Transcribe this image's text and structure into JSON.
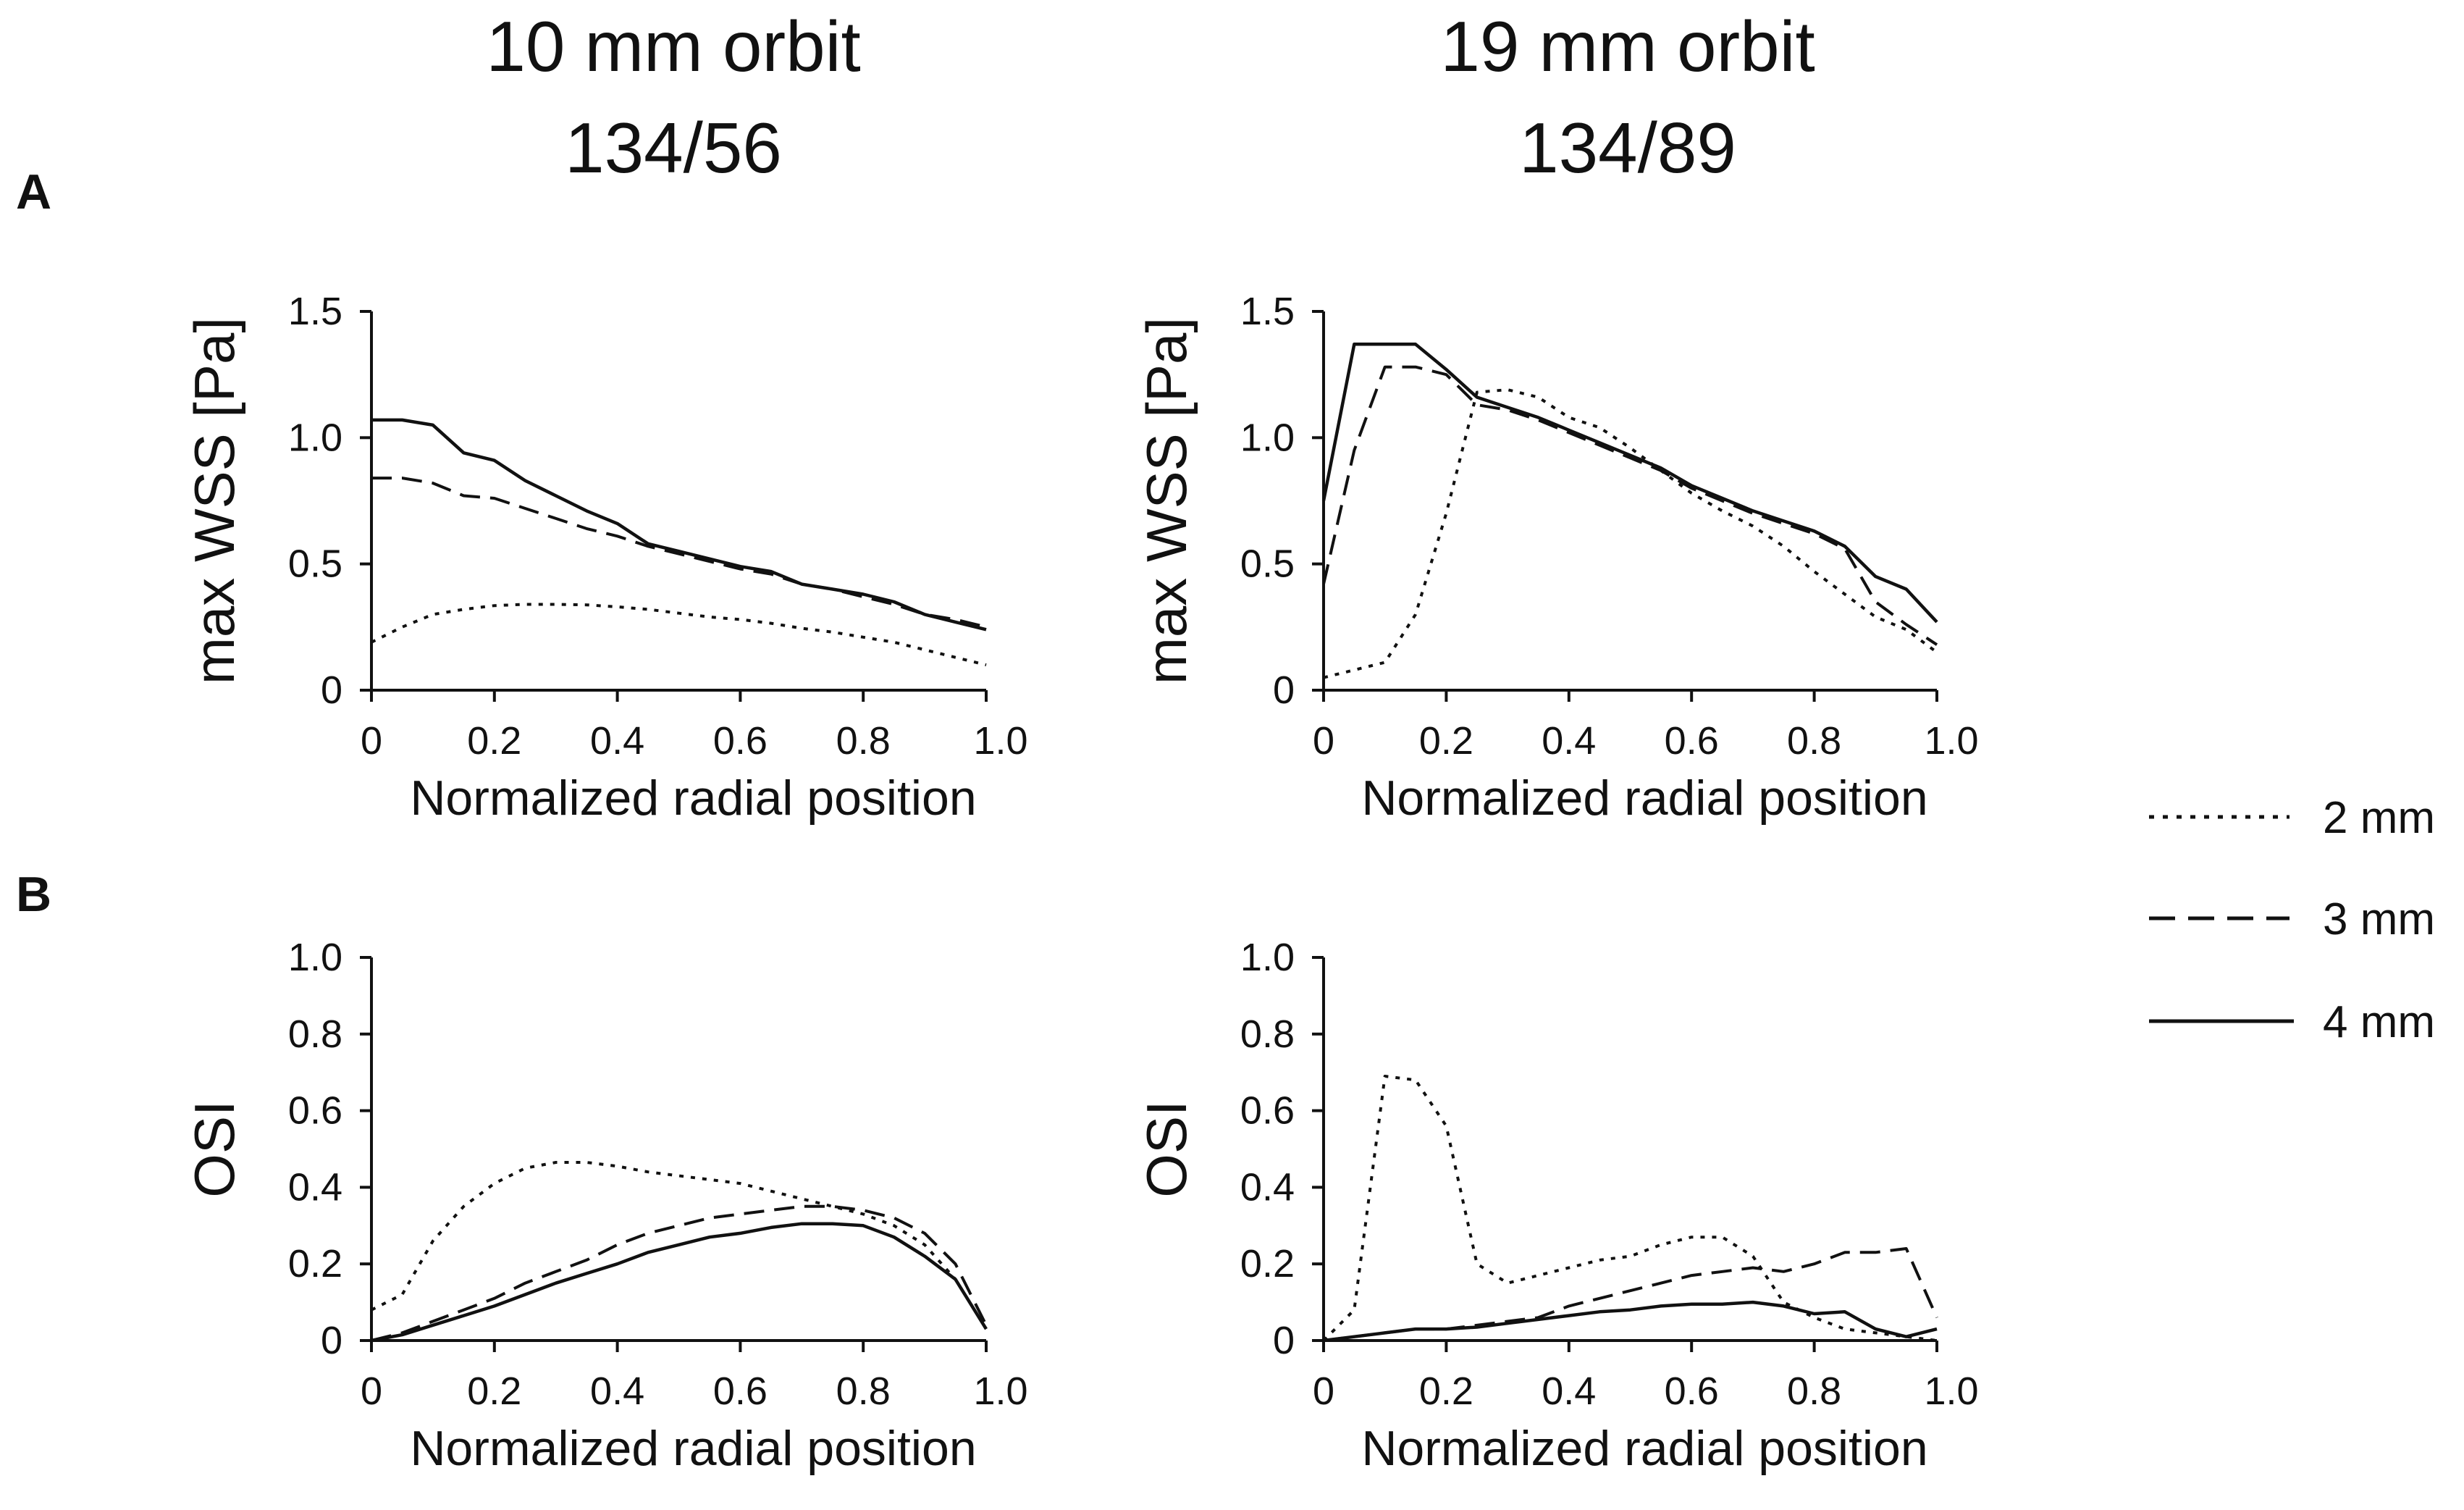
{
  "headers": {
    "left": {
      "line1": "10 mm orbit",
      "line2": "134/56"
    },
    "right": {
      "line1": "19 mm orbit",
      "line2": "134/89"
    }
  },
  "panel_labels": {
    "a": "A",
    "b": "B"
  },
  "legend": [
    {
      "label": "2 mm",
      "style": "dotted"
    },
    {
      "label": "3 mm",
      "style": "dashed"
    },
    {
      "label": "4 mm",
      "style": "solid"
    }
  ],
  "chart_data": [
    {
      "id": "A-left",
      "type": "line",
      "xlabel": "Normalized radial position",
      "ylabel": "max WSS [Pa]",
      "xlim": [
        0,
        1
      ],
      "ylim": [
        0,
        1.5
      ],
      "x_ticks": [
        0,
        0.2,
        0.4,
        0.6,
        0.8,
        1.0
      ],
      "x_tick_labels": [
        "0",
        "0.2",
        "0.4",
        "0.6",
        "0.8",
        "1.0"
      ],
      "y_ticks": [
        0,
        0.5,
        1.0,
        1.5
      ],
      "y_tick_labels": [
        "0",
        "0.5",
        "1.0",
        "1.5"
      ],
      "series": [
        {
          "name": "2 mm",
          "style": "dotted",
          "x": [
            0,
            0.05,
            0.1,
            0.15,
            0.2,
            0.25,
            0.3,
            0.35,
            0.4,
            0.45,
            0.5,
            0.55,
            0.6,
            0.65,
            0.7,
            0.75,
            0.8,
            0.85,
            0.9,
            0.95,
            1.0
          ],
          "y": [
            0.19,
            0.25,
            0.3,
            0.32,
            0.335,
            0.34,
            0.34,
            0.338,
            0.33,
            0.32,
            0.305,
            0.29,
            0.28,
            0.265,
            0.245,
            0.23,
            0.21,
            0.19,
            0.16,
            0.13,
            0.1
          ]
        },
        {
          "name": "3 mm",
          "style": "dashed",
          "x": [
            0,
            0.05,
            0.1,
            0.15,
            0.2,
            0.25,
            0.3,
            0.35,
            0.4,
            0.45,
            0.5,
            0.55,
            0.6,
            0.65,
            0.7,
            0.75,
            0.8,
            0.85,
            0.9,
            0.95,
            1.0
          ],
          "y": [
            0.84,
            0.84,
            0.82,
            0.77,
            0.76,
            0.72,
            0.68,
            0.64,
            0.61,
            0.57,
            0.54,
            0.51,
            0.48,
            0.46,
            0.42,
            0.4,
            0.37,
            0.34,
            0.3,
            0.28,
            0.25
          ]
        },
        {
          "name": "4 mm",
          "style": "solid",
          "x": [
            0,
            0.05,
            0.1,
            0.15,
            0.2,
            0.25,
            0.3,
            0.35,
            0.4,
            0.45,
            0.5,
            0.55,
            0.6,
            0.65,
            0.7,
            0.75,
            0.8,
            0.85,
            0.9,
            0.95,
            1.0
          ],
          "y": [
            1.07,
            1.07,
            1.05,
            0.94,
            0.91,
            0.83,
            0.77,
            0.71,
            0.66,
            0.58,
            0.55,
            0.52,
            0.49,
            0.47,
            0.42,
            0.4,
            0.38,
            0.35,
            0.3,
            0.27,
            0.24
          ]
        }
      ]
    },
    {
      "id": "A-right",
      "type": "line",
      "xlabel": "Normalized radial position",
      "ylabel": "max WSS [Pa]",
      "xlim": [
        0,
        1
      ],
      "ylim": [
        0,
        1.5
      ],
      "x_ticks": [
        0,
        0.2,
        0.4,
        0.6,
        0.8,
        1.0
      ],
      "x_tick_labels": [
        "0",
        "0.2",
        "0.4",
        "0.6",
        "0.8",
        "1.0"
      ],
      "y_ticks": [
        0,
        0.5,
        1.0,
        1.5
      ],
      "y_tick_labels": [
        "0",
        "0.5",
        "1.0",
        "1.5"
      ],
      "series": [
        {
          "name": "2 mm",
          "style": "dotted",
          "x": [
            0,
            0.05,
            0.1,
            0.15,
            0.2,
            0.25,
            0.3,
            0.35,
            0.4,
            0.45,
            0.5,
            0.55,
            0.6,
            0.65,
            0.7,
            0.75,
            0.8,
            0.85,
            0.9,
            0.95,
            1.0
          ],
          "y": [
            0.05,
            0.08,
            0.11,
            0.3,
            0.7,
            1.18,
            1.19,
            1.16,
            1.08,
            1.04,
            0.96,
            0.87,
            0.78,
            0.71,
            0.65,
            0.57,
            0.47,
            0.38,
            0.29,
            0.24,
            0.15
          ]
        },
        {
          "name": "3 mm",
          "style": "dashed",
          "x": [
            0,
            0.05,
            0.1,
            0.15,
            0.2,
            0.25,
            0.3,
            0.35,
            0.4,
            0.45,
            0.5,
            0.55,
            0.6,
            0.65,
            0.7,
            0.75,
            0.8,
            0.85,
            0.9,
            0.95,
            1.0
          ],
          "y": [
            0.42,
            0.95,
            1.28,
            1.28,
            1.25,
            1.13,
            1.11,
            1.07,
            1.02,
            0.97,
            0.92,
            0.87,
            0.8,
            0.75,
            0.7,
            0.66,
            0.62,
            0.56,
            0.35,
            0.26,
            0.18
          ]
        },
        {
          "name": "4 mm",
          "style": "solid",
          "x": [
            0,
            0.05,
            0.1,
            0.15,
            0.2,
            0.25,
            0.3,
            0.35,
            0.4,
            0.45,
            0.5,
            0.55,
            0.6,
            0.65,
            0.7,
            0.75,
            0.8,
            0.85,
            0.9,
            0.95,
            1.0
          ],
          "y": [
            0.75,
            1.37,
            1.37,
            1.37,
            1.27,
            1.16,
            1.12,
            1.08,
            1.03,
            0.98,
            0.93,
            0.88,
            0.81,
            0.76,
            0.71,
            0.67,
            0.63,
            0.57,
            0.45,
            0.4,
            0.27
          ]
        }
      ]
    },
    {
      "id": "B-left",
      "type": "line",
      "xlabel": "Normalized radial position",
      "ylabel": "OSI",
      "xlim": [
        0,
        1
      ],
      "ylim": [
        0,
        1.0
      ],
      "x_ticks": [
        0,
        0.2,
        0.4,
        0.6,
        0.8,
        1.0
      ],
      "x_tick_labels": [
        "0",
        "0.2",
        "0.4",
        "0.6",
        "0.8",
        "1.0"
      ],
      "y_ticks": [
        0,
        0.2,
        0.4,
        0.6,
        0.8,
        1.0
      ],
      "y_tick_labels": [
        "0",
        "0.2",
        "0.4",
        "0.6",
        "0.8",
        "1.0"
      ],
      "series": [
        {
          "name": "2 mm",
          "style": "dotted",
          "x": [
            0,
            0.05,
            0.1,
            0.15,
            0.2,
            0.25,
            0.3,
            0.35,
            0.4,
            0.45,
            0.5,
            0.55,
            0.6,
            0.65,
            0.7,
            0.75,
            0.8,
            0.85,
            0.9,
            0.95,
            1.0
          ],
          "y": [
            0.08,
            0.12,
            0.26,
            0.35,
            0.41,
            0.45,
            0.465,
            0.465,
            0.455,
            0.44,
            0.43,
            0.42,
            0.41,
            0.39,
            0.37,
            0.35,
            0.33,
            0.3,
            0.25,
            0.16,
            0.03
          ]
        },
        {
          "name": "3 mm",
          "style": "dashed",
          "x": [
            0,
            0.05,
            0.1,
            0.15,
            0.2,
            0.25,
            0.3,
            0.35,
            0.4,
            0.45,
            0.5,
            0.55,
            0.6,
            0.65,
            0.7,
            0.75,
            0.8,
            0.85,
            0.9,
            0.95,
            1.0
          ],
          "y": [
            0.0,
            0.02,
            0.05,
            0.08,
            0.11,
            0.15,
            0.18,
            0.21,
            0.25,
            0.28,
            0.3,
            0.32,
            0.33,
            0.34,
            0.35,
            0.35,
            0.34,
            0.32,
            0.28,
            0.2,
            0.04
          ]
        },
        {
          "name": "4 mm",
          "style": "solid",
          "x": [
            0,
            0.05,
            0.1,
            0.15,
            0.2,
            0.25,
            0.3,
            0.35,
            0.4,
            0.45,
            0.5,
            0.55,
            0.6,
            0.65,
            0.7,
            0.75,
            0.8,
            0.85,
            0.9,
            0.95,
            1.0
          ],
          "y": [
            0.0,
            0.015,
            0.04,
            0.065,
            0.09,
            0.12,
            0.15,
            0.175,
            0.2,
            0.23,
            0.25,
            0.27,
            0.28,
            0.295,
            0.305,
            0.305,
            0.3,
            0.27,
            0.22,
            0.16,
            0.03
          ]
        }
      ]
    },
    {
      "id": "B-right",
      "type": "line",
      "xlabel": "Normalized radial position",
      "ylabel": "OSI",
      "xlim": [
        0,
        1
      ],
      "ylim": [
        0,
        1.0
      ],
      "x_ticks": [
        0,
        0.2,
        0.4,
        0.6,
        0.8,
        1.0
      ],
      "x_tick_labels": [
        "0",
        "0.2",
        "0.4",
        "0.6",
        "0.8",
        "1.0"
      ],
      "y_ticks": [
        0,
        0.2,
        0.4,
        0.6,
        0.8,
        1.0
      ],
      "y_tick_labels": [
        "0",
        "0.2",
        "0.4",
        "0.6",
        "0.8",
        "1.0"
      ],
      "series": [
        {
          "name": "2 mm",
          "style": "dotted",
          "x": [
            0,
            0.05,
            0.1,
            0.15,
            0.2,
            0.25,
            0.3,
            0.35,
            0.4,
            0.45,
            0.5,
            0.55,
            0.6,
            0.65,
            0.7,
            0.75,
            0.8,
            0.85,
            0.9,
            0.95,
            1.0
          ],
          "y": [
            0.0,
            0.08,
            0.69,
            0.68,
            0.56,
            0.2,
            0.15,
            0.17,
            0.19,
            0.21,
            0.22,
            0.25,
            0.27,
            0.27,
            0.22,
            0.1,
            0.06,
            0.03,
            0.02,
            0.01,
            0.0
          ]
        },
        {
          "name": "3 mm",
          "style": "dashed",
          "x": [
            0,
            0.05,
            0.1,
            0.15,
            0.2,
            0.25,
            0.3,
            0.35,
            0.4,
            0.45,
            0.5,
            0.55,
            0.6,
            0.65,
            0.7,
            0.75,
            0.8,
            0.85,
            0.9,
            0.95,
            1.0
          ],
          "y": [
            0.0,
            0.01,
            0.02,
            0.03,
            0.03,
            0.04,
            0.05,
            0.06,
            0.09,
            0.11,
            0.13,
            0.15,
            0.17,
            0.18,
            0.19,
            0.18,
            0.2,
            0.23,
            0.23,
            0.24,
            0.06
          ]
        },
        {
          "name": "4 mm",
          "style": "solid",
          "x": [
            0,
            0.05,
            0.1,
            0.15,
            0.2,
            0.25,
            0.3,
            0.35,
            0.4,
            0.45,
            0.5,
            0.55,
            0.6,
            0.65,
            0.7,
            0.75,
            0.8,
            0.85,
            0.9,
            0.95,
            1.0
          ],
          "y": [
            0.0,
            0.01,
            0.02,
            0.03,
            0.03,
            0.035,
            0.045,
            0.055,
            0.065,
            0.075,
            0.08,
            0.09,
            0.095,
            0.095,
            0.1,
            0.09,
            0.07,
            0.075,
            0.03,
            0.01,
            0.03
          ]
        }
      ]
    }
  ]
}
